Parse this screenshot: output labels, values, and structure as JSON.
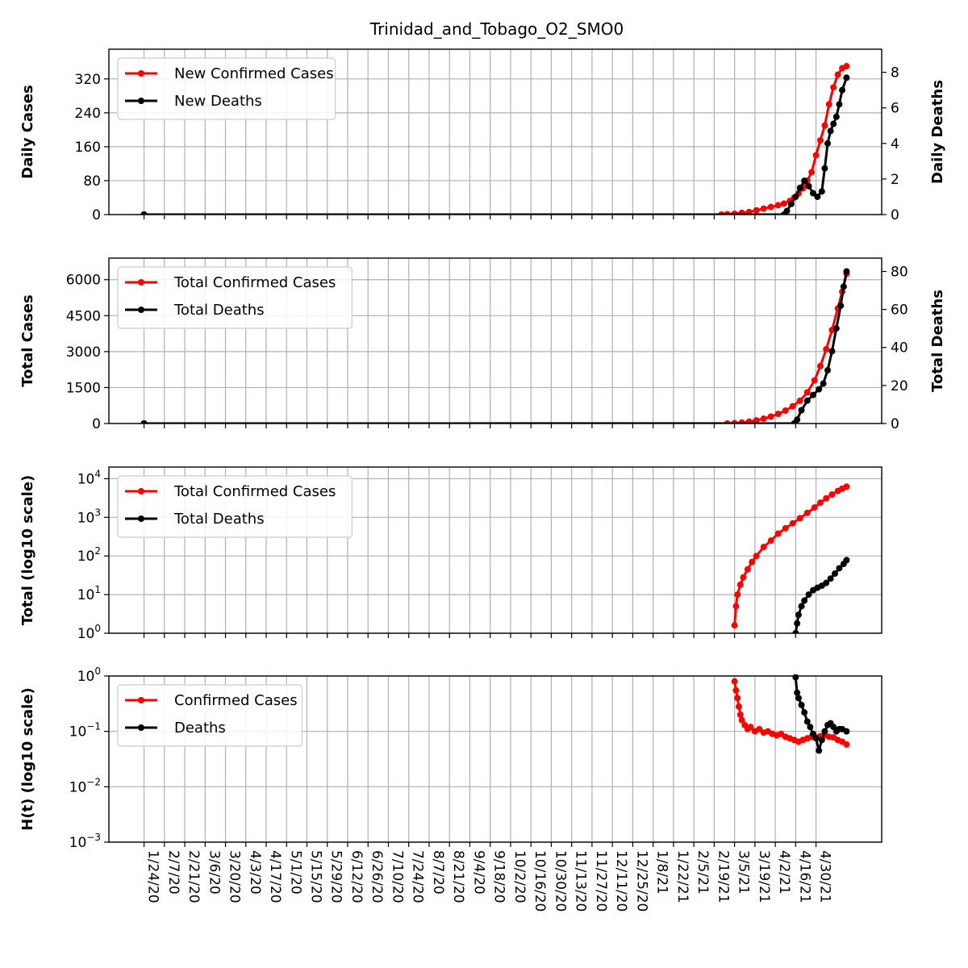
{
  "chart_data": {
    "type": "line",
    "title": "Trinidad_and_Tobago_O2_SMO0",
    "x_tick_labels": [
      "1/24/20",
      "2/7/20",
      "2/21/20",
      "3/6/20",
      "3/20/20",
      "4/3/20",
      "4/17/20",
      "5/1/20",
      "5/15/20",
      "5/29/20",
      "6/12/20",
      "6/26/20",
      "7/10/20",
      "7/24/20",
      "8/7/20",
      "8/21/20",
      "9/4/20",
      "9/18/20",
      "10/2/20",
      "10/16/20",
      "10/30/20",
      "11/13/20",
      "11/27/20",
      "12/11/20",
      "12/25/20",
      "1/8/21",
      "1/22/21",
      "2/5/21",
      "2/19/21",
      "3/5/21",
      "3/19/21",
      "4/2/21",
      "4/16/21",
      "4/30/21"
    ],
    "x_range": [
      "1/24/20",
      "5/21/21"
    ],
    "colors": {
      "cases": "#ff0000",
      "deaths": "#000000",
      "grid": "#b0b0b0"
    },
    "panels": [
      {
        "id": "daily",
        "ylabel": "Daily Cases",
        "ylabel_right": "Daily Deaths",
        "yscale": "linear",
        "ylim": [
          0,
          390
        ],
        "yticks": [
          0,
          80,
          160,
          240,
          320
        ],
        "ylim_right": [
          0,
          9.3
        ],
        "yticks_right": [
          0,
          2,
          4,
          6,
          8
        ],
        "legend": "upper-left",
        "series": [
          {
            "name": "New Confirmed Cases",
            "axis": "left",
            "color": "#ff0000",
            "x": [
              "1/24/20",
              "2/24/21",
              "2/28/21",
              "3/5/21",
              "3/10/21",
              "3/15/21",
              "3/20/21",
              "3/25/21",
              "3/30/21",
              "4/4/21",
              "4/8/21",
              "4/12/21",
              "4/15/21",
              "4/18/21",
              "4/21/21",
              "4/24/21",
              "4/27/21",
              "4/30/21",
              "5/3/21",
              "5/6/21",
              "5/9/21",
              "5/12/21",
              "5/15/21",
              "5/18/21",
              "5/21/21"
            ],
            "y": [
              0,
              0,
              1,
              2,
              4,
              6,
              10,
              14,
              18,
              22,
              26,
              32,
              40,
              50,
              62,
              80,
              100,
              140,
              175,
              210,
              260,
              300,
              330,
              345,
              350
            ]
          },
          {
            "name": "New Deaths",
            "axis": "right",
            "color": "#000000",
            "x": [
              "1/24/20",
              "4/8/21",
              "4/10/21",
              "4/13/21",
              "4/16/21",
              "4/19/21",
              "4/22/21",
              "4/25/21",
              "4/28/21",
              "5/1/21",
              "5/4/21",
              "5/6/21",
              "5/8/21",
              "5/10/21",
              "5/12/21",
              "5/14/21",
              "5/16/21",
              "5/18/21",
              "5/21/21"
            ],
            "y": [
              0,
              0,
              0.2,
              0.6,
              1.0,
              1.5,
              1.9,
              1.6,
              1.2,
              1.0,
              1.3,
              2.6,
              4.0,
              4.7,
              5.1,
              5.5,
              6.2,
              7.0,
              7.7
            ]
          }
        ]
      },
      {
        "id": "total",
        "ylabel": "Total Cases",
        "ylabel_right": "Total Deaths",
        "yscale": "linear",
        "ylim": [
          0,
          6900
        ],
        "yticks": [
          0,
          1500,
          3000,
          4500,
          6000
        ],
        "ylim_right": [
          0,
          87
        ],
        "yticks_right": [
          0,
          20,
          40,
          60,
          80
        ],
        "legend": "upper-left",
        "series": [
          {
            "name": "Total Confirmed Cases",
            "axis": "left",
            "color": "#ff0000",
            "x": [
              "1/24/20",
              "2/28/21",
              "3/5/21",
              "3/10/21",
              "3/15/21",
              "3/20/21",
              "3/25/21",
              "3/30/21",
              "4/4/21",
              "4/9/21",
              "4/14/21",
              "4/19/21",
              "4/24/21",
              "4/29/21",
              "5/3/21",
              "5/7/21",
              "5/11/21",
              "5/15/21",
              "5/18/21",
              "5/21/21"
            ],
            "y": [
              0,
              2,
              15,
              40,
              80,
              130,
              200,
              290,
              400,
              540,
              720,
              950,
              1300,
              1800,
              2400,
              3100,
              3900,
              4800,
              5500,
              6250
            ]
          },
          {
            "name": "Total Deaths",
            "axis": "right",
            "color": "#000000",
            "x": [
              "1/24/20",
              "4/15/21",
              "4/17/21",
              "4/20/21",
              "4/24/21",
              "4/28/21",
              "5/2/21",
              "5/5/21",
              "5/8/21",
              "5/11/21",
              "5/14/21",
              "5/17/21",
              "5/19/21",
              "5/21/21"
            ],
            "y": [
              0,
              0,
              2,
              7,
              12,
              15,
              18,
              21,
              28,
              38,
              50,
              62,
              72,
              80
            ]
          }
        ]
      },
      {
        "id": "log",
        "ylabel": "Total (log10 scale)",
        "yscale": "log",
        "ylim": [
          1,
          20000
        ],
        "yticks": [
          1,
          10,
          100,
          1000,
          10000
        ],
        "ytick_labels": [
          [
            "10",
            "0"
          ],
          [
            "10",
            "1"
          ],
          [
            "10",
            "2"
          ],
          [
            "10",
            "3"
          ],
          [
            "10",
            "4"
          ]
        ],
        "legend": "upper-left",
        "series": [
          {
            "name": "Total Confirmed Cases",
            "axis": "left",
            "color": "#ff0000",
            "x": [
              "3/5/21",
              "3/6/21",
              "3/7/21",
              "3/9/21",
              "3/11/21",
              "3/14/21",
              "3/17/21",
              "3/20/21",
              "3/25/21",
              "3/30/21",
              "4/4/21",
              "4/9/21",
              "4/14/21",
              "4/19/21",
              "4/24/21",
              "4/29/21",
              "5/3/21",
              "5/7/21",
              "5/11/21",
              "5/15/21",
              "5/18/21",
              "5/21/21"
            ],
            "y": [
              1.6,
              5,
              10,
              18,
              28,
              45,
              70,
              100,
              170,
              250,
              380,
              520,
              700,
              950,
              1300,
              1800,
              2400,
              3100,
              3900,
              4800,
              5500,
              6250
            ]
          },
          {
            "name": "Total Deaths",
            "axis": "left",
            "color": "#000000",
            "x": [
              "4/16/21",
              "4/17/21",
              "4/18/21",
              "4/20/21",
              "4/22/21",
              "4/25/21",
              "4/28/21",
              "5/1/21",
              "5/4/21",
              "5/7/21",
              "5/10/21",
              "5/13/21",
              "5/16/21",
              "5/19/21",
              "5/21/21"
            ],
            "y": [
              1,
              1.8,
              3,
              5,
              7,
              10,
              13,
              15,
              17,
              20,
              26,
              35,
              48,
              62,
              78
            ]
          }
        ]
      },
      {
        "id": "ht",
        "ylabel": "H(t) (log10 scale)",
        "yscale": "log",
        "ylim": [
          0.001,
          1
        ],
        "yticks": [
          0.001,
          0.01,
          0.1,
          1
        ],
        "ytick_labels": [
          [
            "10",
            "−3"
          ],
          [
            "10",
            "−2"
          ],
          [
            "10",
            "−1"
          ],
          [
            "10",
            "0"
          ]
        ],
        "legend": "upper-left",
        "series": [
          {
            "name": "Confirmed Cases",
            "axis": "left",
            "color": "#ff0000",
            "x": [
              "3/5/21",
              "3/6/21",
              "3/7/21",
              "3/8/21",
              "3/9/21",
              "3/10/21",
              "3/12/21",
              "3/14/21",
              "3/16/21",
              "3/19/21",
              "3/22/21",
              "3/25/21",
              "3/28/21",
              "3/31/21",
              "4/3/21",
              "4/6/21",
              "4/9/21",
              "4/12/21",
              "4/15/21",
              "4/18/21",
              "4/21/21",
              "4/24/21",
              "4/27/21",
              "4/30/21",
              "5/3/21",
              "5/6/21",
              "5/9/21",
              "5/12/21",
              "5/15/21",
              "5/18/21",
              "5/21/21"
            ],
            "y": [
              0.8,
              0.55,
              0.4,
              0.28,
              0.2,
              0.16,
              0.13,
              0.11,
              0.12,
              0.1,
              0.11,
              0.095,
              0.1,
              0.09,
              0.085,
              0.09,
              0.08,
              0.075,
              0.07,
              0.065,
              0.07,
              0.075,
              0.08,
              0.078,
              0.082,
              0.085,
              0.08,
              0.078,
              0.07,
              0.065,
              0.058
            ]
          },
          {
            "name": "Deaths",
            "axis": "left",
            "color": "#000000",
            "x": [
              "4/16/21",
              "4/17/21",
              "4/18/21",
              "4/20/21",
              "4/22/21",
              "4/24/21",
              "4/26/21",
              "4/28/21",
              "4/30/21",
              "5/2/21",
              "5/4/21",
              "5/6/21",
              "5/8/21",
              "5/10/21",
              "5/12/21",
              "5/14/21",
              "5/16/21",
              "5/18/21",
              "5/21/21"
            ],
            "y": [
              0.95,
              0.5,
              0.4,
              0.3,
              0.22,
              0.15,
              0.12,
              0.09,
              0.075,
              0.045,
              0.07,
              0.1,
              0.13,
              0.14,
              0.12,
              0.1,
              0.11,
              0.11,
              0.1
            ]
          }
        ]
      }
    ]
  }
}
